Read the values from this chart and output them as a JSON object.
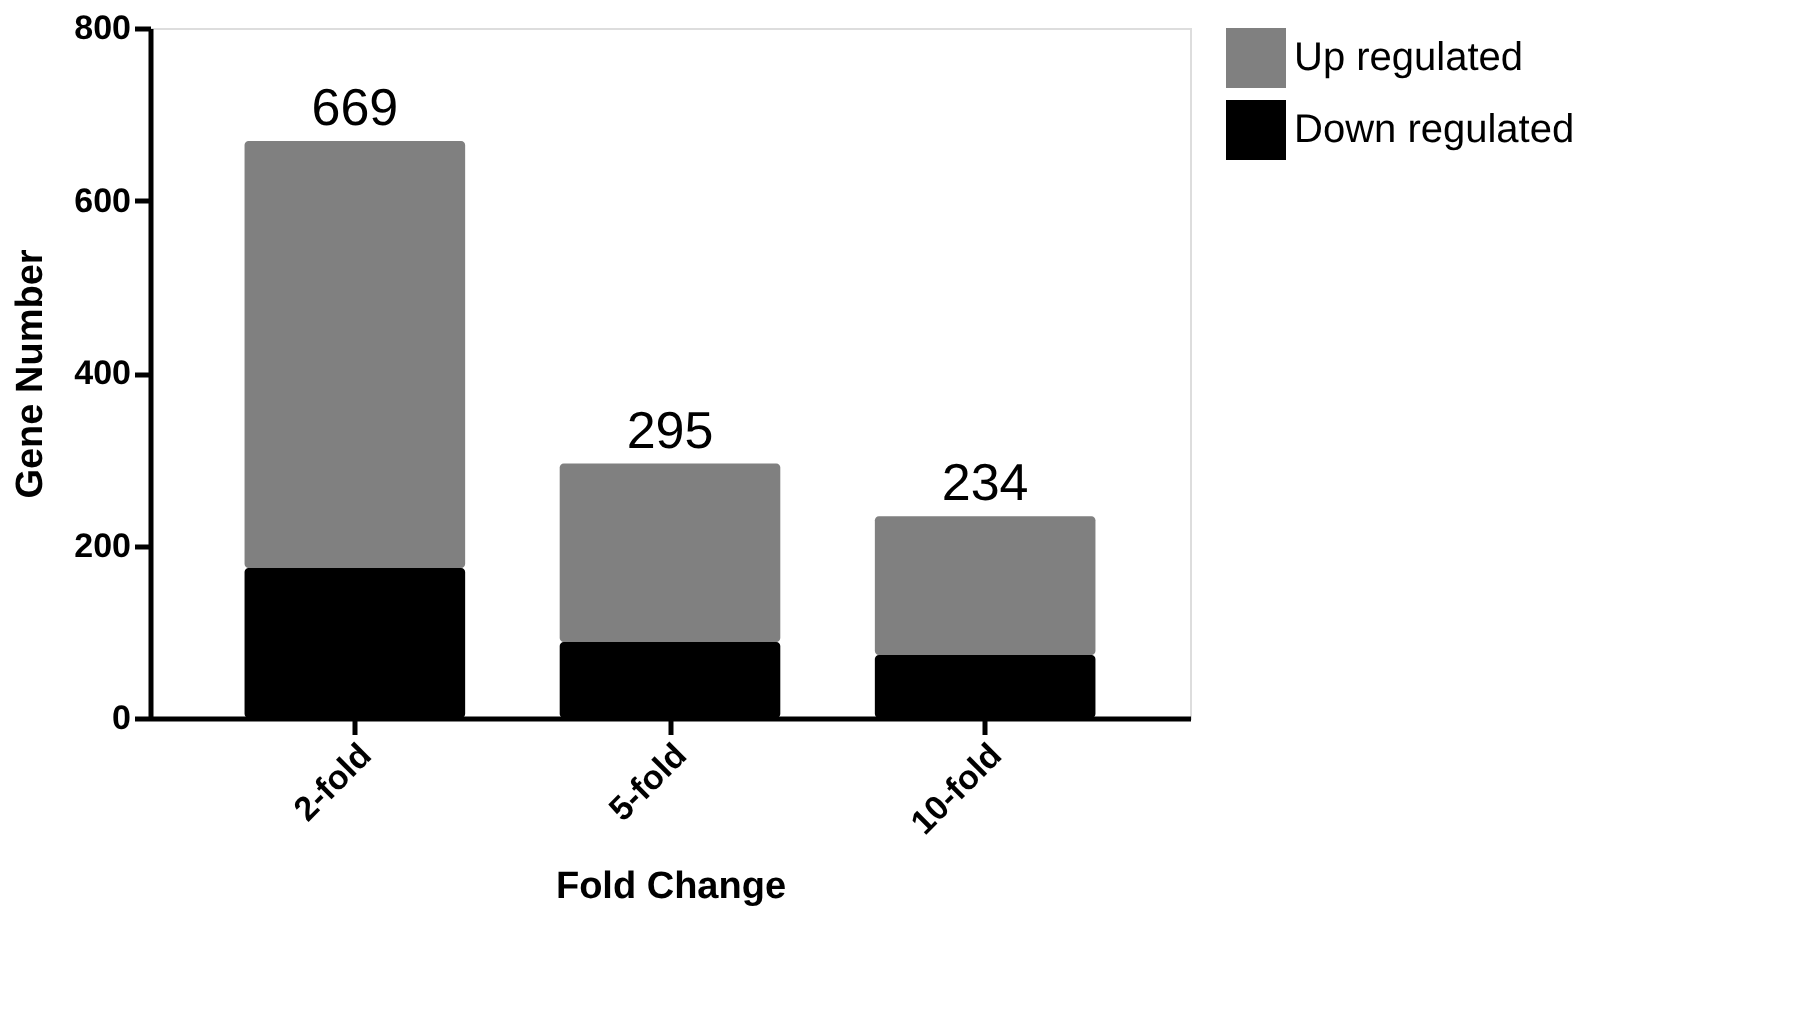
{
  "chart_data": {
    "type": "bar",
    "stacked": true,
    "xlabel": "Fold Change",
    "ylabel": "Gene Number",
    "categories": [
      "2-fold",
      "5-fold",
      "10-fold"
    ],
    "series": [
      {
        "name": "Down regulated",
        "color": "#000000",
        "values": [
          174,
          88,
          73
        ]
      },
      {
        "name": "Up regulated",
        "color": "#808080",
        "values": [
          495,
          207,
          161
        ]
      }
    ],
    "ylim": [
      0,
      800
    ],
    "yticks": [
      0,
      200,
      400,
      600,
      800
    ],
    "grid": false,
    "legend": "right",
    "totals": [
      "669",
      "295",
      "234"
    ]
  }
}
